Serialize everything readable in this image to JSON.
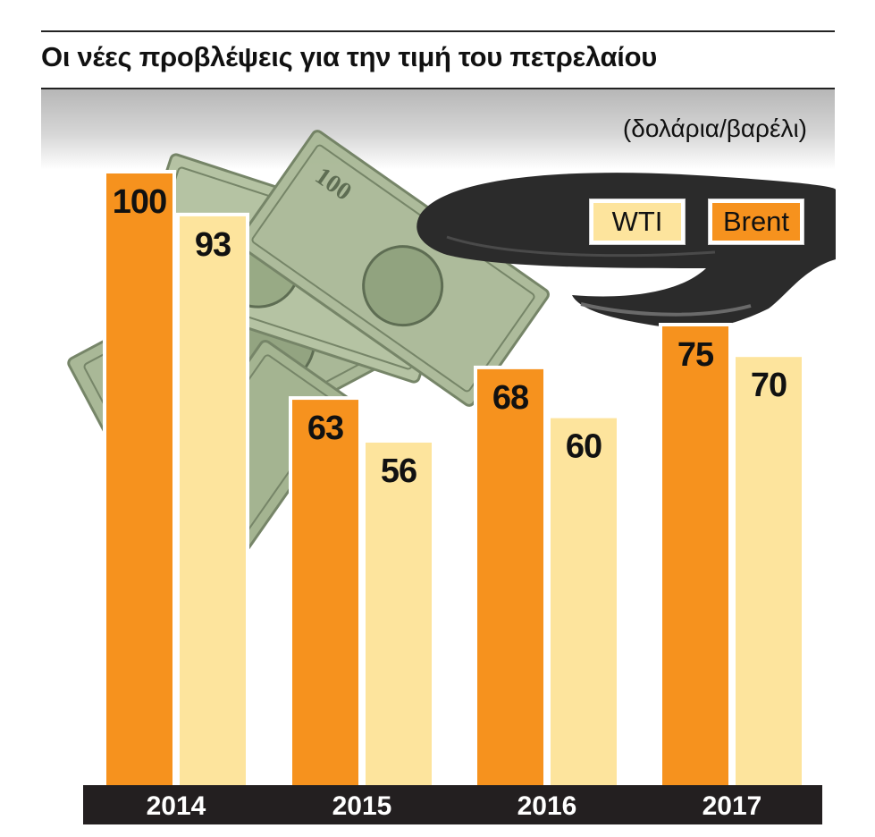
{
  "title": "Οι νέες προβλέψεις για την τιμή του πετρελαίου",
  "unit_label": "(δολάρια/βαρέλι)",
  "legend": {
    "wti": "WTI",
    "brent": "Brent"
  },
  "colors": {
    "brent": "#f6921e",
    "wti": "#fde49d",
    "axis_band": "#231f20",
    "oil": "#2b2b2b",
    "money": "#9fb08a"
  },
  "chart_data": {
    "type": "bar",
    "categories": [
      "2014",
      "2015",
      "2016",
      "2017"
    ],
    "series": [
      {
        "name": "Brent",
        "values": [
          100,
          63,
          68,
          75
        ]
      },
      {
        "name": "WTI",
        "values": [
          93,
          56,
          60,
          70
        ]
      }
    ],
    "ylim": [
      0,
      100
    ],
    "grid": false,
    "legend_position": "top-right",
    "data_labels": true
  }
}
